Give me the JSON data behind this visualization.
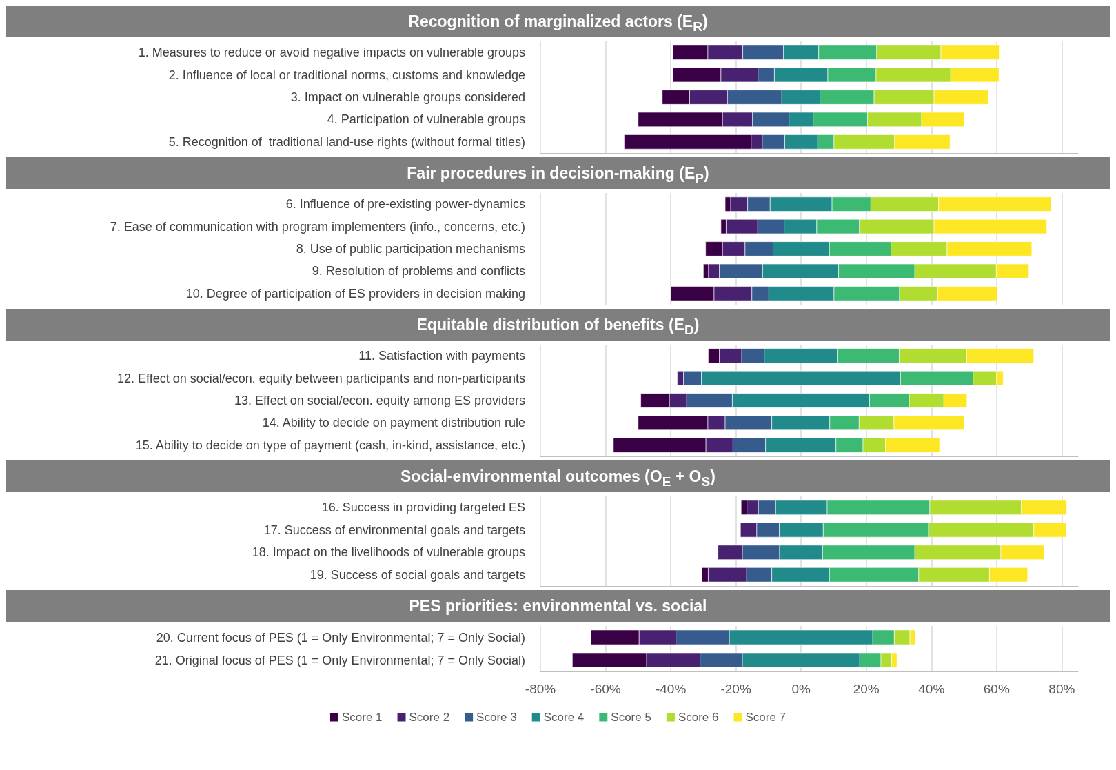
{
  "chart_data": [
    {
      "type": "bar",
      "orientation": "horizontal",
      "title": "Recognition of marginalized actors (E$_{R}$)",
      "tick_labels": "y",
      "grid": "x",
      "xlim": [
        -80,
        85
      ],
      "xticks": [
        -80,
        -60,
        -40,
        -20,
        0,
        20,
        40,
        60,
        80
      ],
      "categories": [
        "1. Measures to reduce or avoid negative impacts on vulnerable groups",
        "2. Influence of local or traditional norms, customs and knowledge",
        "3. Impact on vulnerable groups considered",
        "4. Participation of vulnerable groups",
        "5. Recognition of  traditional land-use rights (without formal titles)"
      ],
      "series": [
        {
          "color": "#3a0045",
          "values": [
            10.7,
            14.7,
            8.4,
            25.9,
            39.0
          ],
          "base": [
            -39.3,
            -39.3,
            -42.6,
            -50.0,
            -54.3
          ]
        },
        {
          "color": "#482271",
          "values": [
            10.7,
            11.4,
            11.6,
            9.2,
            3.4
          ],
          "base": [
            -28.6,
            -24.6,
            -34.2,
            -24.1,
            -15.3
          ]
        },
        {
          "color": "#355c8d",
          "values": [
            12.5,
            5.0,
            16.7,
            11.2,
            6.9
          ],
          "base": [
            -17.9,
            -13.2,
            -22.6,
            -14.9,
            -11.9
          ]
        },
        {
          "color": "#218b8b",
          "values": [
            10.8,
            16.4,
            11.7,
            7.4,
            10.1
          ],
          "base": [
            -5.4,
            -8.2,
            -5.9,
            -3.7,
            -5.0
          ]
        },
        {
          "color": "#3cba74",
          "values": [
            17.8,
            14.8,
            16.6,
            16.7,
            5.0
          ],
          "base": [
            5.4,
            8.2,
            5.8,
            3.7,
            5.1
          ]
        },
        {
          "color": "#b0dd2f",
          "values": [
            19.7,
            22.9,
            18.4,
            16.6,
            18.6
          ],
          "base": [
            23.2,
            23.0,
            22.4,
            20.4,
            10.1
          ]
        },
        {
          "color": "#fde725",
          "values": [
            17.9,
            14.8,
            16.6,
            13.0,
            17.0
          ],
          "base": [
            42.9,
            45.9,
            40.8,
            37.0,
            28.7
          ]
        }
      ]
    },
    {
      "type": "bar",
      "orientation": "horizontal",
      "title": "Fair procedures in decision-making (E$_{P}$)",
      "tick_labels": "y",
      "grid": "x",
      "xlim": [
        -80,
        85
      ],
      "xticks": [
        -80,
        -60,
        -40,
        -20,
        0,
        20,
        40,
        60,
        80
      ],
      "categories": [
        "6. Influence of pre-existing power-dynamics",
        "7. Ease of communication with program implementers (info., concerns, etc.)",
        "8. Use of public participation mechanisms",
        "9. Resolution of problems and conflicts",
        "10. Degree of participation of ES providers in decision making"
      ],
      "series": [
        {
          "color": "#3a0045",
          "values": [
            1.7,
            1.6,
            5.2,
            1.6,
            13.3
          ],
          "base": [
            -23.3,
            -24.6,
            -29.3,
            -30.0,
            -40.0
          ]
        },
        {
          "color": "#482271",
          "values": [
            5.2,
            9.7,
            6.9,
            3.3,
            11.6
          ],
          "base": [
            -21.6,
            -23.0,
            -24.1,
            -28.4,
            -26.7
          ]
        },
        {
          "color": "#355c8d",
          "values": [
            6.9,
            8.1,
            8.6,
            13.3,
            5.2
          ],
          "base": [
            -16.4,
            -13.3,
            -17.2,
            -25.1,
            -15.1
          ]
        },
        {
          "color": "#218b8b",
          "values": [
            19.0,
            10.0,
            17.3,
            23.3,
            20.0
          ],
          "base": [
            -9.5,
            -5.2,
            -8.6,
            -11.8,
            -9.9
          ]
        },
        {
          "color": "#3cba74",
          "values": [
            11.9,
            13.1,
            18.9,
            23.4,
            20.1
          ],
          "base": [
            9.5,
            4.8,
            8.7,
            11.5,
            10.1
          ]
        },
        {
          "color": "#b0dd2f",
          "values": [
            20.8,
            22.9,
            17.2,
            25.0,
            11.7
          ],
          "base": [
            21.4,
            17.9,
            27.6,
            34.9,
            30.2
          ]
        },
        {
          "color": "#fde725",
          "values": [
            34.5,
            34.6,
            26.0,
            10.0,
            18.3
          ],
          "base": [
            42.2,
            40.8,
            44.8,
            59.9,
            41.9
          ]
        }
      ]
    },
    {
      "type": "bar",
      "orientation": "horizontal",
      "title": "Equitable distribution of benefits (E$_{D}$)",
      "tick_labels": "y",
      "grid": "x",
      "xlim": [
        -80,
        85
      ],
      "xticks": [
        -80,
        -60,
        -40,
        -20,
        0,
        20,
        40,
        60,
        80
      ],
      "categories": [
        "11. Satisfaction with payments",
        "12. Effect on social/econ. equity between participants and non-participants",
        "13. Effect on social/econ. equity among ES providers",
        "14. Ability to decide on payment distribution rule",
        "15. Ability to decide on type of payment (cash, in-kind, assistance, etc.)"
      ],
      "series": [
        {
          "color": "#3a0045",
          "values": [
            3.4,
            null,
            8.8,
            21.4,
            28.4
          ],
          "base": [
            -28.5,
            null,
            -49.2,
            -50.0,
            -57.6
          ]
        },
        {
          "color": "#482271",
          "values": [
            6.9,
            1.9,
            5.3,
            5.3,
            8.3
          ],
          "base": [
            -25.1,
            -38.0,
            -40.4,
            -28.6,
            -29.2
          ]
        },
        {
          "color": "#355c8d",
          "values": [
            6.9,
            5.5,
            14.0,
            14.3,
            10.0
          ],
          "base": [
            -18.2,
            -36.1,
            -35.1,
            -23.3,
            -20.9
          ]
        },
        {
          "color": "#218b8b",
          "values": [
            22.4,
            61.1,
            42.1,
            17.8,
            21.6
          ],
          "base": [
            -11.3,
            -30.6,
            -21.1,
            -9.0,
            -10.9
          ]
        },
        {
          "color": "#3cba74",
          "values": [
            19.0,
            22.3,
            12.2,
            9.0,
            8.3
          ],
          "base": [
            11.1,
            30.5,
            21.0,
            8.8,
            10.7
          ]
        },
        {
          "color": "#b0dd2f",
          "values": [
            20.7,
            7.2,
            10.6,
            10.7,
            6.9
          ],
          "base": [
            30.1,
            52.8,
            33.2,
            17.8,
            19.0
          ]
        },
        {
          "color": "#fde725",
          "values": [
            20.6,
            2.0,
            7.1,
            21.5,
            16.6
          ],
          "base": [
            50.8,
            60.0,
            43.8,
            28.5,
            25.9
          ]
        }
      ]
    },
    {
      "type": "bar",
      "orientation": "horizontal",
      "title": "Social-environmental outcomes (O$_{E}$ + O$_{S}$)",
      "tick_labels": "y",
      "grid": "x",
      "xlim": [
        -80,
        85
      ],
      "xticks": [
        -80,
        -60,
        -40,
        -20,
        0,
        20,
        40,
        60,
        80
      ],
      "categories": [
        "16. Success in providing targeted ES",
        "17. Success of environmental goals and targets",
        "18. Impact on the livelihoods of vulnerable groups",
        "19. Success of social goals and targets"
      ],
      "series": [
        {
          "color": "#3a0045",
          "values": [
            1.8,
            null,
            null,
            2.0
          ],
          "base": [
            -18.4,
            null,
            null,
            -30.5
          ]
        },
        {
          "color": "#482271",
          "values": [
            3.5,
            5.0,
            7.5,
            11.8
          ],
          "base": [
            -16.6,
            -18.6,
            -25.5,
            -28.5
          ]
        },
        {
          "color": "#355c8d",
          "values": [
            5.3,
            6.9,
            11.4,
            7.7
          ],
          "base": [
            -13.1,
            -13.6,
            -18.0,
            -16.7
          ]
        },
        {
          "color": "#218b8b",
          "values": [
            15.8,
            13.5,
            13.2,
            17.7
          ],
          "base": [
            -7.8,
            -6.7,
            -6.6,
            -9.0
          ]
        },
        {
          "color": "#3cba74",
          "values": [
            31.5,
            32.3,
            28.3,
            27.4
          ],
          "base": [
            8.0,
            6.8,
            6.6,
            8.7
          ]
        },
        {
          "color": "#b0dd2f",
          "values": [
            28.1,
            32.3,
            26.4,
            21.7
          ],
          "base": [
            39.5,
            39.1,
            34.9,
            36.1
          ]
        },
        {
          "color": "#fde725",
          "values": [
            13.9,
            10.0,
            13.3,
            11.7
          ],
          "base": [
            67.6,
            71.4,
            61.3,
            57.8
          ]
        }
      ]
    },
    {
      "type": "bar",
      "orientation": "horizontal",
      "title": "PES priorities: environmental vs. social",
      "grid": "x",
      "legend": "bottom",
      "xlim": [
        -80,
        85
      ],
      "xticks": [
        {
          "value": -80,
          "label": "-80%"
        },
        {
          "value": -60,
          "label": "-60%"
        },
        {
          "value": -40,
          "label": "-40%"
        },
        {
          "value": -20,
          "label": "-20%"
        },
        {
          "value": 0,
          "label": "0%"
        },
        {
          "value": 20,
          "label": "20%"
        },
        {
          "value": 40,
          "label": "40%"
        },
        {
          "value": 60,
          "label": "60%"
        },
        {
          "value": 80,
          "label": "80%"
        }
      ],
      "categories": [
        "20. Current focus of PES (1 = Only Environmental; 7 = Only Social)",
        "21. Original focus of PES (1 = Only Environmental; 7 = Only Social)"
      ],
      "series": [
        {
          "name": "Score 1",
          "color": "#3a0045",
          "values": [
            14.8,
            22.8
          ],
          "base": [
            -64.5,
            -70.2
          ]
        },
        {
          "name": "Score 2",
          "color": "#482271",
          "values": [
            11.3,
            16.4
          ],
          "base": [
            -49.7,
            -47.4
          ]
        },
        {
          "name": "Score 3",
          "color": "#355c8d",
          "values": [
            16.4,
            13.0
          ],
          "base": [
            -38.4,
            -31.0
          ]
        },
        {
          "name": "Score 4",
          "color": "#218b8b",
          "values": [
            44.0,
            36.0
          ],
          "base": [
            -22.0,
            -18.0
          ]
        },
        {
          "name": "Score 5",
          "color": "#3cba74",
          "values": [
            6.6,
            6.5
          ],
          "base": [
            22.0,
            18.0
          ]
        },
        {
          "name": "Score 6",
          "color": "#b0dd2f",
          "values": [
            4.8,
            3.3
          ],
          "base": [
            28.6,
            24.5
          ]
        },
        {
          "name": "Score 7",
          "color": "#fde725",
          "values": [
            1.6,
            1.6
          ],
          "base": [
            33.4,
            27.8
          ]
        }
      ]
    }
  ]
}
